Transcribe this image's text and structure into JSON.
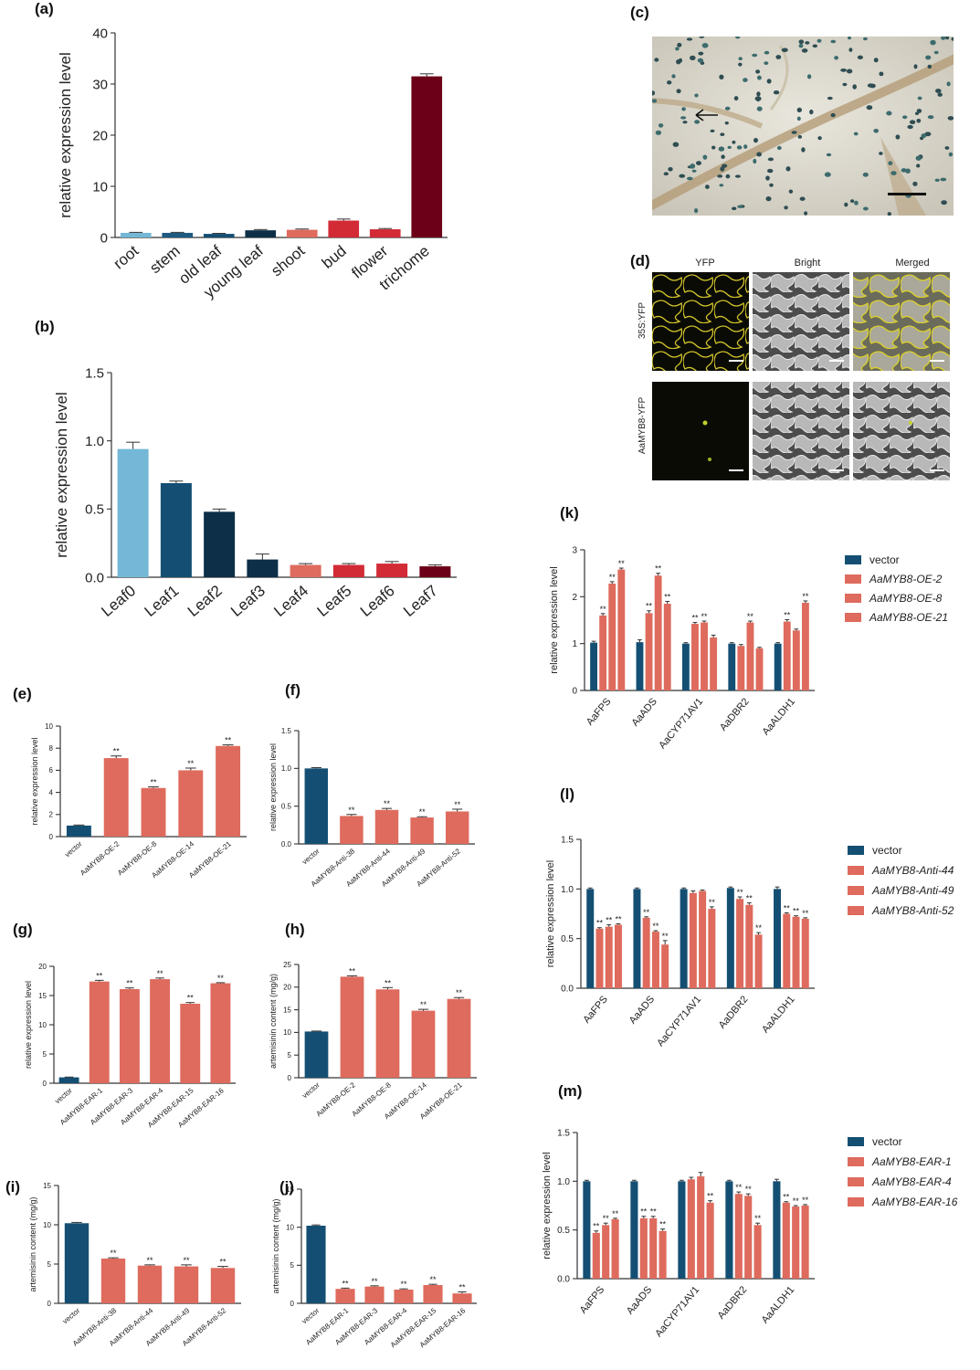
{
  "colors": {
    "light_blue": "#74b7d6",
    "blue": "#144f73",
    "dark_blue": "#0d2f47",
    "salmon": "#de6b5d",
    "red": "#d22b36",
    "dark_red": "#6c0019",
    "vector": "#144f73",
    "treatment": "#de6b5d"
  },
  "figure_c": {
    "label": "(c)"
  },
  "figure_d": {
    "label": "(d)",
    "col_labels": [
      "YFP",
      "Bright",
      "Merged"
    ],
    "row_labels": [
      "35S:YFP",
      "AaMYB8-YFP"
    ]
  },
  "chart_data": [
    {
      "panel": "(a)",
      "type": "bar",
      "ylabel": "relative expression level",
      "ylim": [
        0,
        40
      ],
      "yticks": [
        "0",
        "10",
        "20",
        "30",
        "40"
      ],
      "categories": [
        "root",
        "stem",
        "old leaf",
        "young leaf",
        "shoot",
        "bud",
        "flower",
        "trichome"
      ],
      "values": [
        0.9,
        0.9,
        0.7,
        1.4,
        1.5,
        3.3,
        1.6,
        31.5
      ],
      "errors": [
        0.1,
        0.1,
        0.1,
        0.15,
        0.15,
        0.3,
        0.15,
        0.5
      ],
      "colors": [
        "#74b7d6",
        "#1d5a82",
        "#144f73",
        "#0d2f47",
        "#de6b5d",
        "#d22b36",
        "#d22b36",
        "#6c0019"
      ]
    },
    {
      "panel": "(b)",
      "type": "bar",
      "ylabel": "relative expression level",
      "ylim": [
        0,
        1.5
      ],
      "yticks": [
        "0.0",
        "0.5",
        "1.0",
        "1.5"
      ],
      "categories": [
        "Leaf0",
        "Leaf1",
        "Leaf2",
        "Leaf3",
        "Leaf4",
        "Leaf5",
        "Leaf6",
        "Leaf7"
      ],
      "values": [
        0.94,
        0.69,
        0.48,
        0.13,
        0.09,
        0.09,
        0.1,
        0.08
      ],
      "errors": [
        0.05,
        0.015,
        0.02,
        0.04,
        0.01,
        0.01,
        0.015,
        0.01
      ],
      "colors": [
        "#74b7d6",
        "#144f73",
        "#0d2f47",
        "#0d2f47",
        "#de6b5d",
        "#d22b36",
        "#d22b36",
        "#6c0019"
      ]
    },
    {
      "panel": "(e)",
      "type": "bar",
      "ylabel": "relative expression level",
      "ylim": [
        0,
        10
      ],
      "yticks": [
        "0",
        "2",
        "4",
        "6",
        "8",
        "10"
      ],
      "categories": [
        "vector",
        "AaMYB8-OE-2",
        "AaMYB8-OE-8",
        "AaMYB8-OE-14",
        "AaMYB8-OE-21"
      ],
      "values": [
        1.0,
        7.1,
        4.4,
        6.0,
        8.2
      ],
      "errors": [
        0.05,
        0.2,
        0.1,
        0.2,
        0.1
      ],
      "annot": [
        "",
        "**",
        "**",
        "**",
        "**"
      ]
    },
    {
      "panel": "(f)",
      "type": "bar",
      "ylabel": "relative expression level",
      "ylim": [
        0,
        1.5
      ],
      "yticks": [
        "0.0",
        "0.5",
        "1.0",
        "1.5"
      ],
      "categories": [
        "vector",
        "AaMYB8-Anti-38",
        "AaMYB8-Anti-44",
        "AaMYB8-Anti-49",
        "AaMYB8-Anti-52"
      ],
      "values": [
        1.0,
        0.37,
        0.45,
        0.35,
        0.43
      ],
      "errors": [
        0.01,
        0.02,
        0.02,
        0.01,
        0.03
      ],
      "annot": [
        "",
        "**",
        "**",
        "**",
        "**"
      ]
    },
    {
      "panel": "(g)",
      "type": "bar",
      "ylabel": "relative expression level",
      "ylim": [
        0,
        20
      ],
      "yticks": [
        "0",
        "5",
        "10",
        "15",
        "20"
      ],
      "categories": [
        "vector",
        "AaMYB8-EAR-1",
        "AaMYB8-EAR-3",
        "AaMYB8-EAR-4",
        "AaMYB8-EAR-15",
        "AaMYB8-EAR-16"
      ],
      "values": [
        1.0,
        17.4,
        16.1,
        17.8,
        13.6,
        17.1
      ],
      "errors": [
        0.05,
        0.2,
        0.2,
        0.2,
        0.2,
        0.1
      ],
      "annot": [
        "",
        "**",
        "**",
        "**",
        "**",
        "**"
      ]
    },
    {
      "panel": "(h)",
      "type": "bar",
      "ylabel": "artemisinin content (mg/g)",
      "ylim": [
        0,
        25
      ],
      "yticks": [
        "0",
        "5",
        "10",
        "15",
        "20",
        "25"
      ],
      "categories": [
        "vector",
        "AaMYB8-OE-2",
        "AaMYB8-OE-8",
        "AaMYB8-OE-14",
        "AaMYB8-OE-21"
      ],
      "values": [
        10.2,
        22.3,
        19.5,
        14.8,
        17.4
      ],
      "errors": [
        0.1,
        0.2,
        0.4,
        0.3,
        0.3
      ],
      "annot": [
        "",
        "**",
        "**",
        "**",
        "**"
      ]
    },
    {
      "panel": "(i)",
      "type": "bar",
      "ylabel": "artemisinin content (mg/g)",
      "ylim": [
        0,
        15
      ],
      "yticks": [
        "0",
        "5",
        "10",
        "15"
      ],
      "categories": [
        "vector",
        "AaMYB8-Anti-38",
        "AaMYB8-Anti-44",
        "AaMYB8-Anti-49",
        "AaMYB8-Anti-52"
      ],
      "values": [
        10.2,
        5.7,
        4.8,
        4.7,
        4.5
      ],
      "errors": [
        0.1,
        0.1,
        0.1,
        0.2,
        0.2
      ],
      "annot": [
        "",
        "**",
        "**",
        "**",
        "**"
      ]
    },
    {
      "panel": "(j)",
      "type": "bar",
      "ylabel": "artemisinin content (mg/g)",
      "ylim": [
        0,
        15
      ],
      "yticks": [
        "0",
        "5",
        "10",
        "15"
      ],
      "categories": [
        "vector",
        "AaMYB8-EAR-1",
        "AaMYB8-EAR-3",
        "AaMYB8-EAR-4",
        "AaMYB8-EAR-15",
        "AaMYB8-EAR-16"
      ],
      "values": [
        10.2,
        1.9,
        2.2,
        1.8,
        2.4,
        1.3
      ],
      "errors": [
        0.1,
        0.1,
        0.1,
        0.1,
        0.1,
        0.2
      ],
      "annot": [
        "",
        "**",
        "**",
        "**",
        "**",
        "**"
      ]
    },
    {
      "panel": "(k)",
      "type": "grouped-bar",
      "ylabel": "relative expression level",
      "ylim": [
        0,
        3
      ],
      "yticks": [
        "0",
        "1",
        "2",
        "3"
      ],
      "categories": [
        "AaFPS",
        "AaADS",
        "AaCYP71AV1",
        "AaDBR2",
        "AaALDH1"
      ],
      "legend_italic": [
        false,
        true,
        true,
        true
      ],
      "series": [
        {
          "name": "vector",
          "values": [
            1.02,
            1.03,
            1.0,
            1.0,
            1.0
          ],
          "errors": [
            0.03,
            0.05,
            0.02,
            0.02,
            0.02
          ],
          "annot": [
            "",
            "",
            "",
            "",
            ""
          ]
        },
        {
          "name": "AaMYB8-OE-2",
          "values": [
            1.6,
            1.65,
            1.42,
            0.95,
            1.47
          ],
          "errors": [
            0.04,
            0.05,
            0.03,
            0.03,
            0.04
          ],
          "annot": [
            "**",
            "**",
            "**",
            "",
            "**"
          ]
        },
        {
          "name": "AaMYB8-OE-8",
          "values": [
            2.28,
            2.45,
            1.45,
            1.45,
            1.28
          ],
          "errors": [
            0.04,
            0.05,
            0.03,
            0.03,
            0.03
          ],
          "annot": [
            "**",
            "**",
            "**",
            "**",
            ""
          ]
        },
        {
          "name": "AaMYB8-OE-21",
          "values": [
            2.58,
            1.85,
            1.13,
            0.9,
            1.87
          ],
          "errors": [
            0.03,
            0.05,
            0.05,
            0.02,
            0.04
          ],
          "annot": [
            "**",
            "**",
            "",
            "",
            "**"
          ]
        }
      ]
    },
    {
      "panel": "(l)",
      "type": "grouped-bar",
      "ylabel": "relative expression level",
      "ylim": [
        0,
        1.5
      ],
      "yticks": [
        "0.0",
        "0.5",
        "1.0",
        "1.5"
      ],
      "categories": [
        "AaFPS",
        "AaADS",
        "AaCYP71AV1",
        "AaDBR2",
        "AaALDH1"
      ],
      "legend_italic": [
        false,
        true,
        true,
        true
      ],
      "series": [
        {
          "name": "vector",
          "values": [
            1.0,
            1.0,
            1.0,
            1.01,
            1.0
          ],
          "errors": [
            0.01,
            0.01,
            0.01,
            0.01,
            0.02
          ],
          "annot": [
            "",
            "",
            "",
            "",
            ""
          ]
        },
        {
          "name": "AaMYB8-Anti-44",
          "values": [
            0.6,
            0.71,
            0.96,
            0.9,
            0.75
          ],
          "errors": [
            0.01,
            0.01,
            0.02,
            0.02,
            0.01
          ],
          "annot": [
            "**",
            "**",
            "",
            "**",
            "**"
          ]
        },
        {
          "name": "AaMYB8-Anti-49",
          "values": [
            0.62,
            0.57,
            0.98,
            0.84,
            0.72
          ],
          "errors": [
            0.02,
            0.01,
            0.01,
            0.02,
            0.01
          ],
          "annot": [
            "**",
            "**",
            "",
            "**",
            "**"
          ]
        },
        {
          "name": "AaMYB8-Anti-52",
          "values": [
            0.64,
            0.44,
            0.8,
            0.54,
            0.7
          ],
          "errors": [
            0.01,
            0.04,
            0.02,
            0.02,
            0.01
          ],
          "annot": [
            "**",
            "**",
            "**",
            "**",
            "**"
          ]
        }
      ]
    },
    {
      "panel": "(m)",
      "type": "grouped-bar",
      "ylabel": "relative expression level",
      "ylim": [
        0,
        1.5
      ],
      "yticks": [
        "0.0",
        "0.5",
        "1.0",
        "1.5"
      ],
      "categories": [
        "AaFPS",
        "AaADS",
        "AaCYP71AV1",
        "AaDBR2",
        "AaALDH1"
      ],
      "legend_italic": [
        false,
        true,
        true,
        true
      ],
      "series": [
        {
          "name": "vector",
          "values": [
            1.0,
            1.0,
            1.0,
            1.0,
            1.0
          ],
          "errors": [
            0.01,
            0.01,
            0.01,
            0.01,
            0.02
          ],
          "annot": [
            "",
            "",
            "",
            "",
            ""
          ]
        },
        {
          "name": "AaMYB8-EAR-1",
          "values": [
            0.47,
            0.62,
            1.02,
            0.87,
            0.78
          ],
          "errors": [
            0.02,
            0.02,
            0.02,
            0.02,
            0.01
          ],
          "annot": [
            "**",
            "**",
            "",
            "**",
            "**"
          ]
        },
        {
          "name": "AaMYB8-EAR-4",
          "values": [
            0.55,
            0.62,
            1.05,
            0.85,
            0.74
          ],
          "errors": [
            0.02,
            0.02,
            0.04,
            0.02,
            0.01
          ],
          "annot": [
            "**",
            "**",
            "",
            "**",
            "**"
          ]
        },
        {
          "name": "AaMYB8-EAR-16",
          "values": [
            0.61,
            0.49,
            0.78,
            0.55,
            0.75
          ],
          "errors": [
            0.01,
            0.02,
            0.02,
            0.02,
            0.01
          ],
          "annot": [
            "**",
            "**",
            "**",
            "**",
            "**"
          ]
        }
      ]
    }
  ]
}
